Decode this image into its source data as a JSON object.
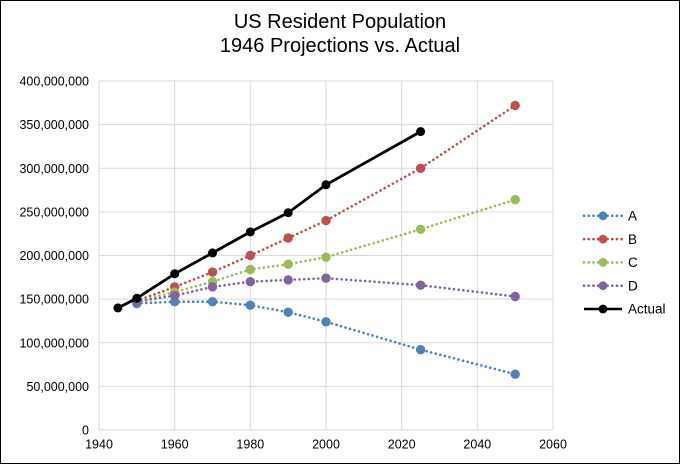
{
  "title": {
    "line1": "US Resident Population",
    "line2": "1946 Projections vs. Actual"
  },
  "colors": {
    "series_a": "#4F81BD",
    "series_b": "#C0504D",
    "series_c": "#9BBB59",
    "series_d": "#8064A2",
    "actual": "#000000",
    "gridline": "#D9D9D9",
    "background": "#FFFFFF",
    "frame_border": "#000000"
  },
  "chart_data": {
    "type": "line",
    "title": "US Resident Population",
    "subtitle": "1946 Projections vs. Actual",
    "xlabel": "",
    "ylabel": "",
    "xlim": [
      1940,
      2060
    ],
    "ylim": [
      0,
      400000000
    ],
    "grid": true,
    "legend_position": "right",
    "x_tick_values": [
      1940,
      1960,
      1980,
      2000,
      2020,
      2040,
      2060
    ],
    "x_tick_labels": [
      "1940",
      "1960",
      "1980",
      "2000",
      "2020",
      "2040",
      "2060"
    ],
    "y_tick_values": [
      0,
      50000000,
      100000000,
      150000000,
      200000000,
      250000000,
      300000000,
      350000000,
      400000000
    ],
    "y_tick_labels": [
      "0",
      "50,000,000",
      "100,000,000",
      "150,000,000",
      "200,000,000",
      "250,000,000",
      "300,000,000",
      "350,000,000",
      "400,000,000"
    ],
    "series": [
      {
        "name": "A",
        "color": "#4F81BD",
        "style": "dotted",
        "x": [
          1950,
          1960,
          1970,
          1980,
          1990,
          2000,
          2025,
          2050
        ],
        "values": [
          145000000,
          147000000,
          147000000,
          143000000,
          135000000,
          124000000,
          92000000,
          64000000
        ]
      },
      {
        "name": "B",
        "color": "#C0504D",
        "style": "dotted",
        "x": [
          1950,
          1960,
          1970,
          1980,
          1990,
          2000,
          2025,
          2050
        ],
        "values": [
          148000000,
          164000000,
          181000000,
          200000000,
          220000000,
          240000000,
          300000000,
          372000000
        ]
      },
      {
        "name": "C",
        "color": "#9BBB59",
        "style": "dotted",
        "x": [
          1950,
          1960,
          1970,
          1980,
          1990,
          2000,
          2025,
          2050
        ],
        "values": [
          147000000,
          158000000,
          170000000,
          184000000,
          190000000,
          198000000,
          230000000,
          264000000
        ]
      },
      {
        "name": "D",
        "color": "#8064A2",
        "style": "dotted",
        "x": [
          1950,
          1960,
          1970,
          1980,
          1990,
          2000,
          2025,
          2050
        ],
        "values": [
          147000000,
          154000000,
          164000000,
          170000000,
          172000000,
          174000000,
          166000000,
          153000000
        ]
      },
      {
        "name": "Actual",
        "color": "#000000",
        "style": "solid",
        "x": [
          1945,
          1950,
          1960,
          1970,
          1980,
          1990,
          2000,
          2025
        ],
        "values": [
          140000000,
          151000000,
          179000000,
          203000000,
          227000000,
          249000000,
          281000000,
          342000000
        ]
      }
    ]
  }
}
